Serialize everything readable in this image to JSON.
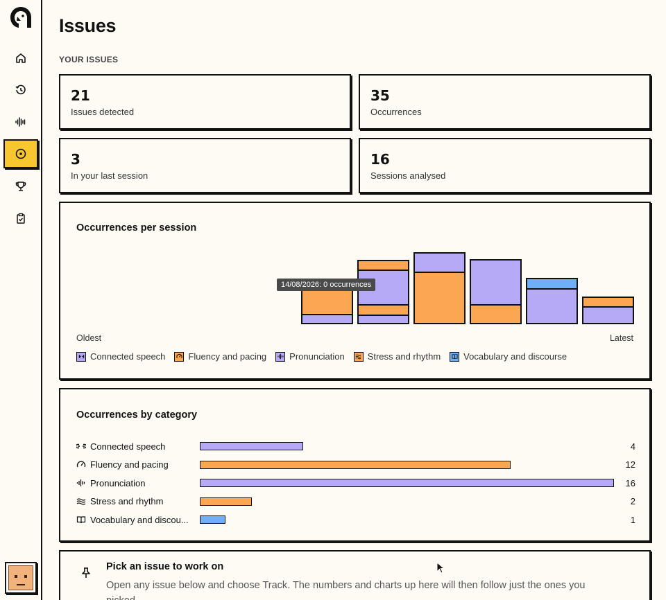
{
  "page": {
    "title": "Issues",
    "section_label": "YOUR ISSUES"
  },
  "sidebar": {
    "items": [
      {
        "name": "home",
        "icon": "home-icon"
      },
      {
        "name": "history",
        "icon": "history-icon"
      },
      {
        "name": "practice",
        "icon": "waveform-icon"
      },
      {
        "name": "issues",
        "icon": "target-icon",
        "active": true
      },
      {
        "name": "achievements",
        "icon": "trophy-icon"
      },
      {
        "name": "tasks",
        "icon": "clipboard-check-icon"
      }
    ]
  },
  "stats": [
    {
      "value": "21",
      "label": "Issues detected"
    },
    {
      "value": "35",
      "label": "Occurrences"
    },
    {
      "value": "3",
      "label": "In your last session"
    },
    {
      "value": "16",
      "label": "Sessions analysed"
    }
  ],
  "sessions_chart": {
    "title": "Occurrences per session",
    "tooltip": "14/08/2026: 0 occurrences",
    "x_start_label": "Oldest",
    "x_end_label": "Latest"
  },
  "legend": [
    {
      "label": "Connected speech",
      "color": "#b6a9f5",
      "icon": "link-icon"
    },
    {
      "label": "Fluency and pacing",
      "color": "#fba653",
      "icon": "gauge-icon"
    },
    {
      "label": "Pronunciation",
      "color": "#b6a9f5",
      "icon": "waveform-icon"
    },
    {
      "label": "Stress and rhythm",
      "color": "#fba653",
      "icon": "waves-icon"
    },
    {
      "label": "Vocabulary and discourse",
      "color": "#6eb0f7",
      "icon": "book-icon"
    }
  ],
  "category_chart": {
    "title": "Occurrences by category",
    "max": 16,
    "rows": [
      {
        "label": "Connected speech",
        "value": 4,
        "count": "4",
        "color": "#b6a9f5",
        "icon": "link-icon"
      },
      {
        "label": "Fluency and pacing",
        "value": 12,
        "count": "12",
        "color": "#fba653",
        "icon": "gauge-icon"
      },
      {
        "label": "Pronunciation",
        "value": 16,
        "count": "16",
        "color": "#b6a9f5",
        "icon": "waveform-icon"
      },
      {
        "label": "Stress and rhythm",
        "value": 2,
        "count": "2",
        "color": "#fba653",
        "icon": "waves-icon"
      },
      {
        "label": "Vocabulary and discou...",
        "value": 1,
        "count": "1",
        "color": "#6eb0f7",
        "icon": "book-icon"
      }
    ]
  },
  "pick": {
    "title": "Pick an issue to work on",
    "description": "Open any issue below and choose Track. The numbers and charts up here will then follow just the ones you picked."
  },
  "colors": {
    "accent": "#f8c62f",
    "purple": "#b6a9f5",
    "orange": "#fba653",
    "blue": "#6eb0f7"
  }
}
